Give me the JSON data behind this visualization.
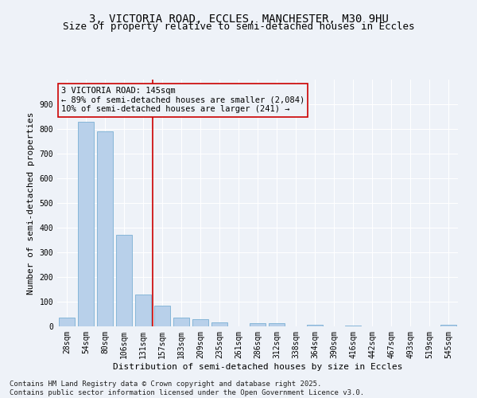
{
  "title_line1": "3, VICTORIA ROAD, ECCLES, MANCHESTER, M30 9HU",
  "title_line2": "Size of property relative to semi-detached houses in Eccles",
  "xlabel": "Distribution of semi-detached houses by size in Eccles",
  "ylabel": "Number of semi-detached properties",
  "categories": [
    "28sqm",
    "54sqm",
    "80sqm",
    "106sqm",
    "131sqm",
    "157sqm",
    "183sqm",
    "209sqm",
    "235sqm",
    "261sqm",
    "286sqm",
    "312sqm",
    "338sqm",
    "364sqm",
    "390sqm",
    "416sqm",
    "442sqm",
    "467sqm",
    "493sqm",
    "519sqm",
    "545sqm"
  ],
  "values": [
    35,
    830,
    790,
    370,
    130,
    83,
    35,
    30,
    15,
    0,
    13,
    13,
    0,
    6,
    0,
    4,
    0,
    0,
    0,
    0,
    7
  ],
  "bar_color": "#b8d0ea",
  "bar_edge_color": "#7aafd4",
  "vline_x": 4.5,
  "vline_color": "#cc0000",
  "annotation_title": "3 VICTORIA ROAD: 145sqm",
  "annotation_line1": "← 89% of semi-detached houses are smaller (2,084)",
  "annotation_line2": "10% of semi-detached houses are larger (241) →",
  "annotation_box_color": "#cc0000",
  "ylim": [
    0,
    1000
  ],
  "yticks": [
    0,
    100,
    200,
    300,
    400,
    500,
    600,
    700,
    800,
    900,
    1000
  ],
  "footer_line1": "Contains HM Land Registry data © Crown copyright and database right 2025.",
  "footer_line2": "Contains public sector information licensed under the Open Government Licence v3.0.",
  "background_color": "#eef2f8",
  "grid_color": "#ffffff",
  "title_fontsize": 10,
  "subtitle_fontsize": 9,
  "axis_label_fontsize": 8,
  "tick_fontsize": 7,
  "annotation_fontsize": 7.5,
  "footer_fontsize": 6.5
}
